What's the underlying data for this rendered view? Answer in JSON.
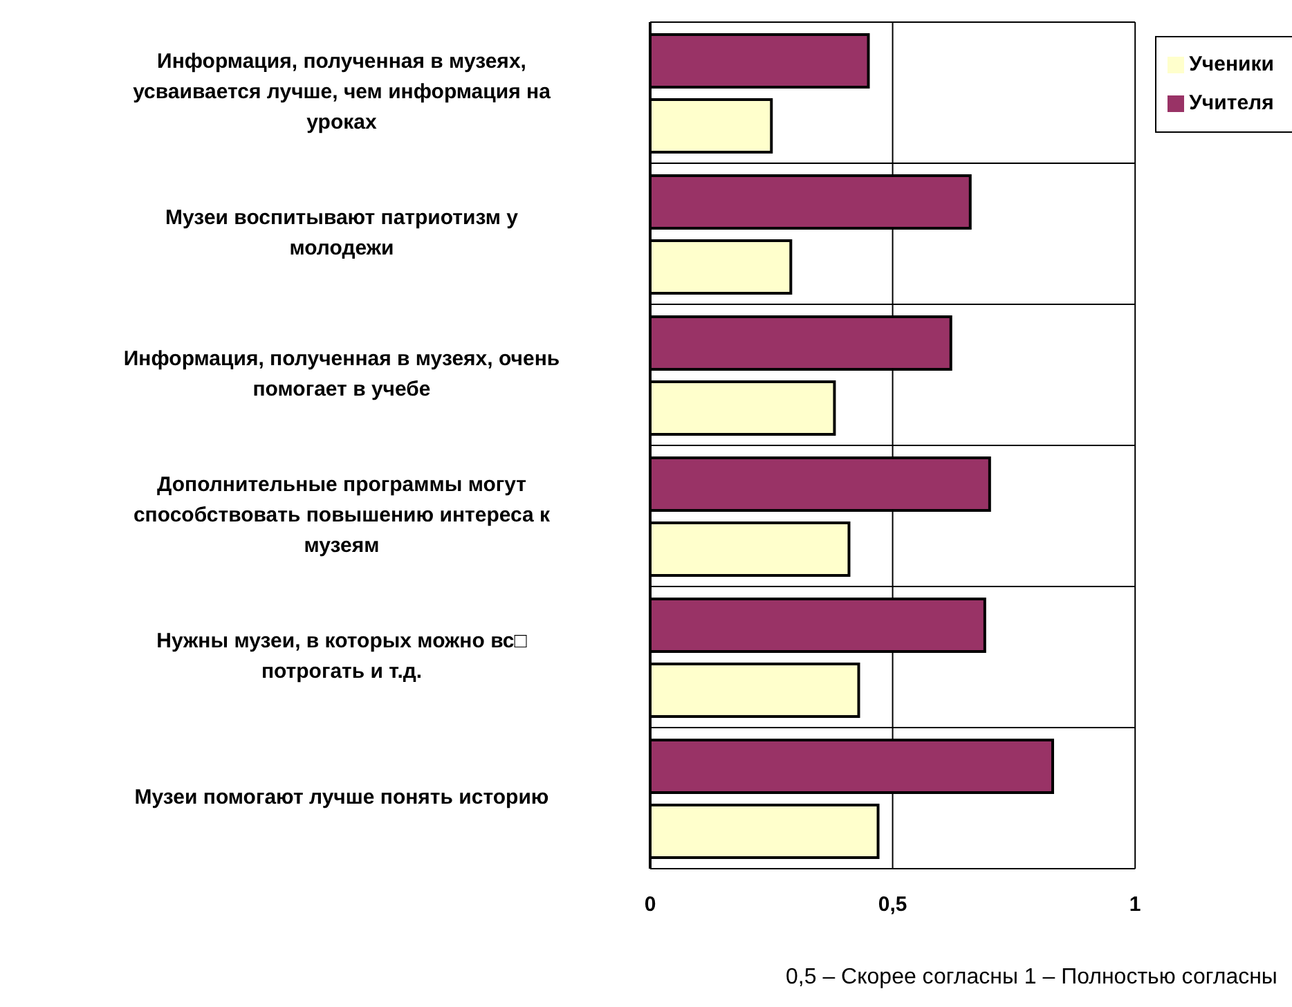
{
  "chart_data": {
    "type": "bar",
    "orientation": "horizontal",
    "categories": [
      "Информация, полученная в музеях, усваивается лучше, чем информация на уроках",
      "Музеи воспитывают патриотизм у молодежи",
      "Информация, полученная в музеях, очень помогает в учебе",
      "Дополнительные программы могут способствовать повышению интереса к музеям",
      "Нужны музеи, в которых можно вс□ потрогать и т.д.",
      "Музеи помогают лучше понять историю"
    ],
    "series": [
      {
        "name": "Учителя",
        "color": "#993366",
        "values": [
          0.45,
          0.66,
          0.62,
          0.7,
          0.69,
          0.83
        ]
      },
      {
        "name": "Ученики",
        "color": "#ffffcc",
        "values": [
          0.25,
          0.29,
          0.38,
          0.41,
          0.43,
          0.47
        ]
      }
    ],
    "xlim": [
      0,
      1
    ],
    "xticks": [
      0,
      {
        "value": 0.5,
        "label": "0,5"
      },
      1
    ],
    "grid": true,
    "legend": "top right",
    "annotations": [
      "0,5 – Скорее согласны 1 – Полностью согласны"
    ]
  }
}
